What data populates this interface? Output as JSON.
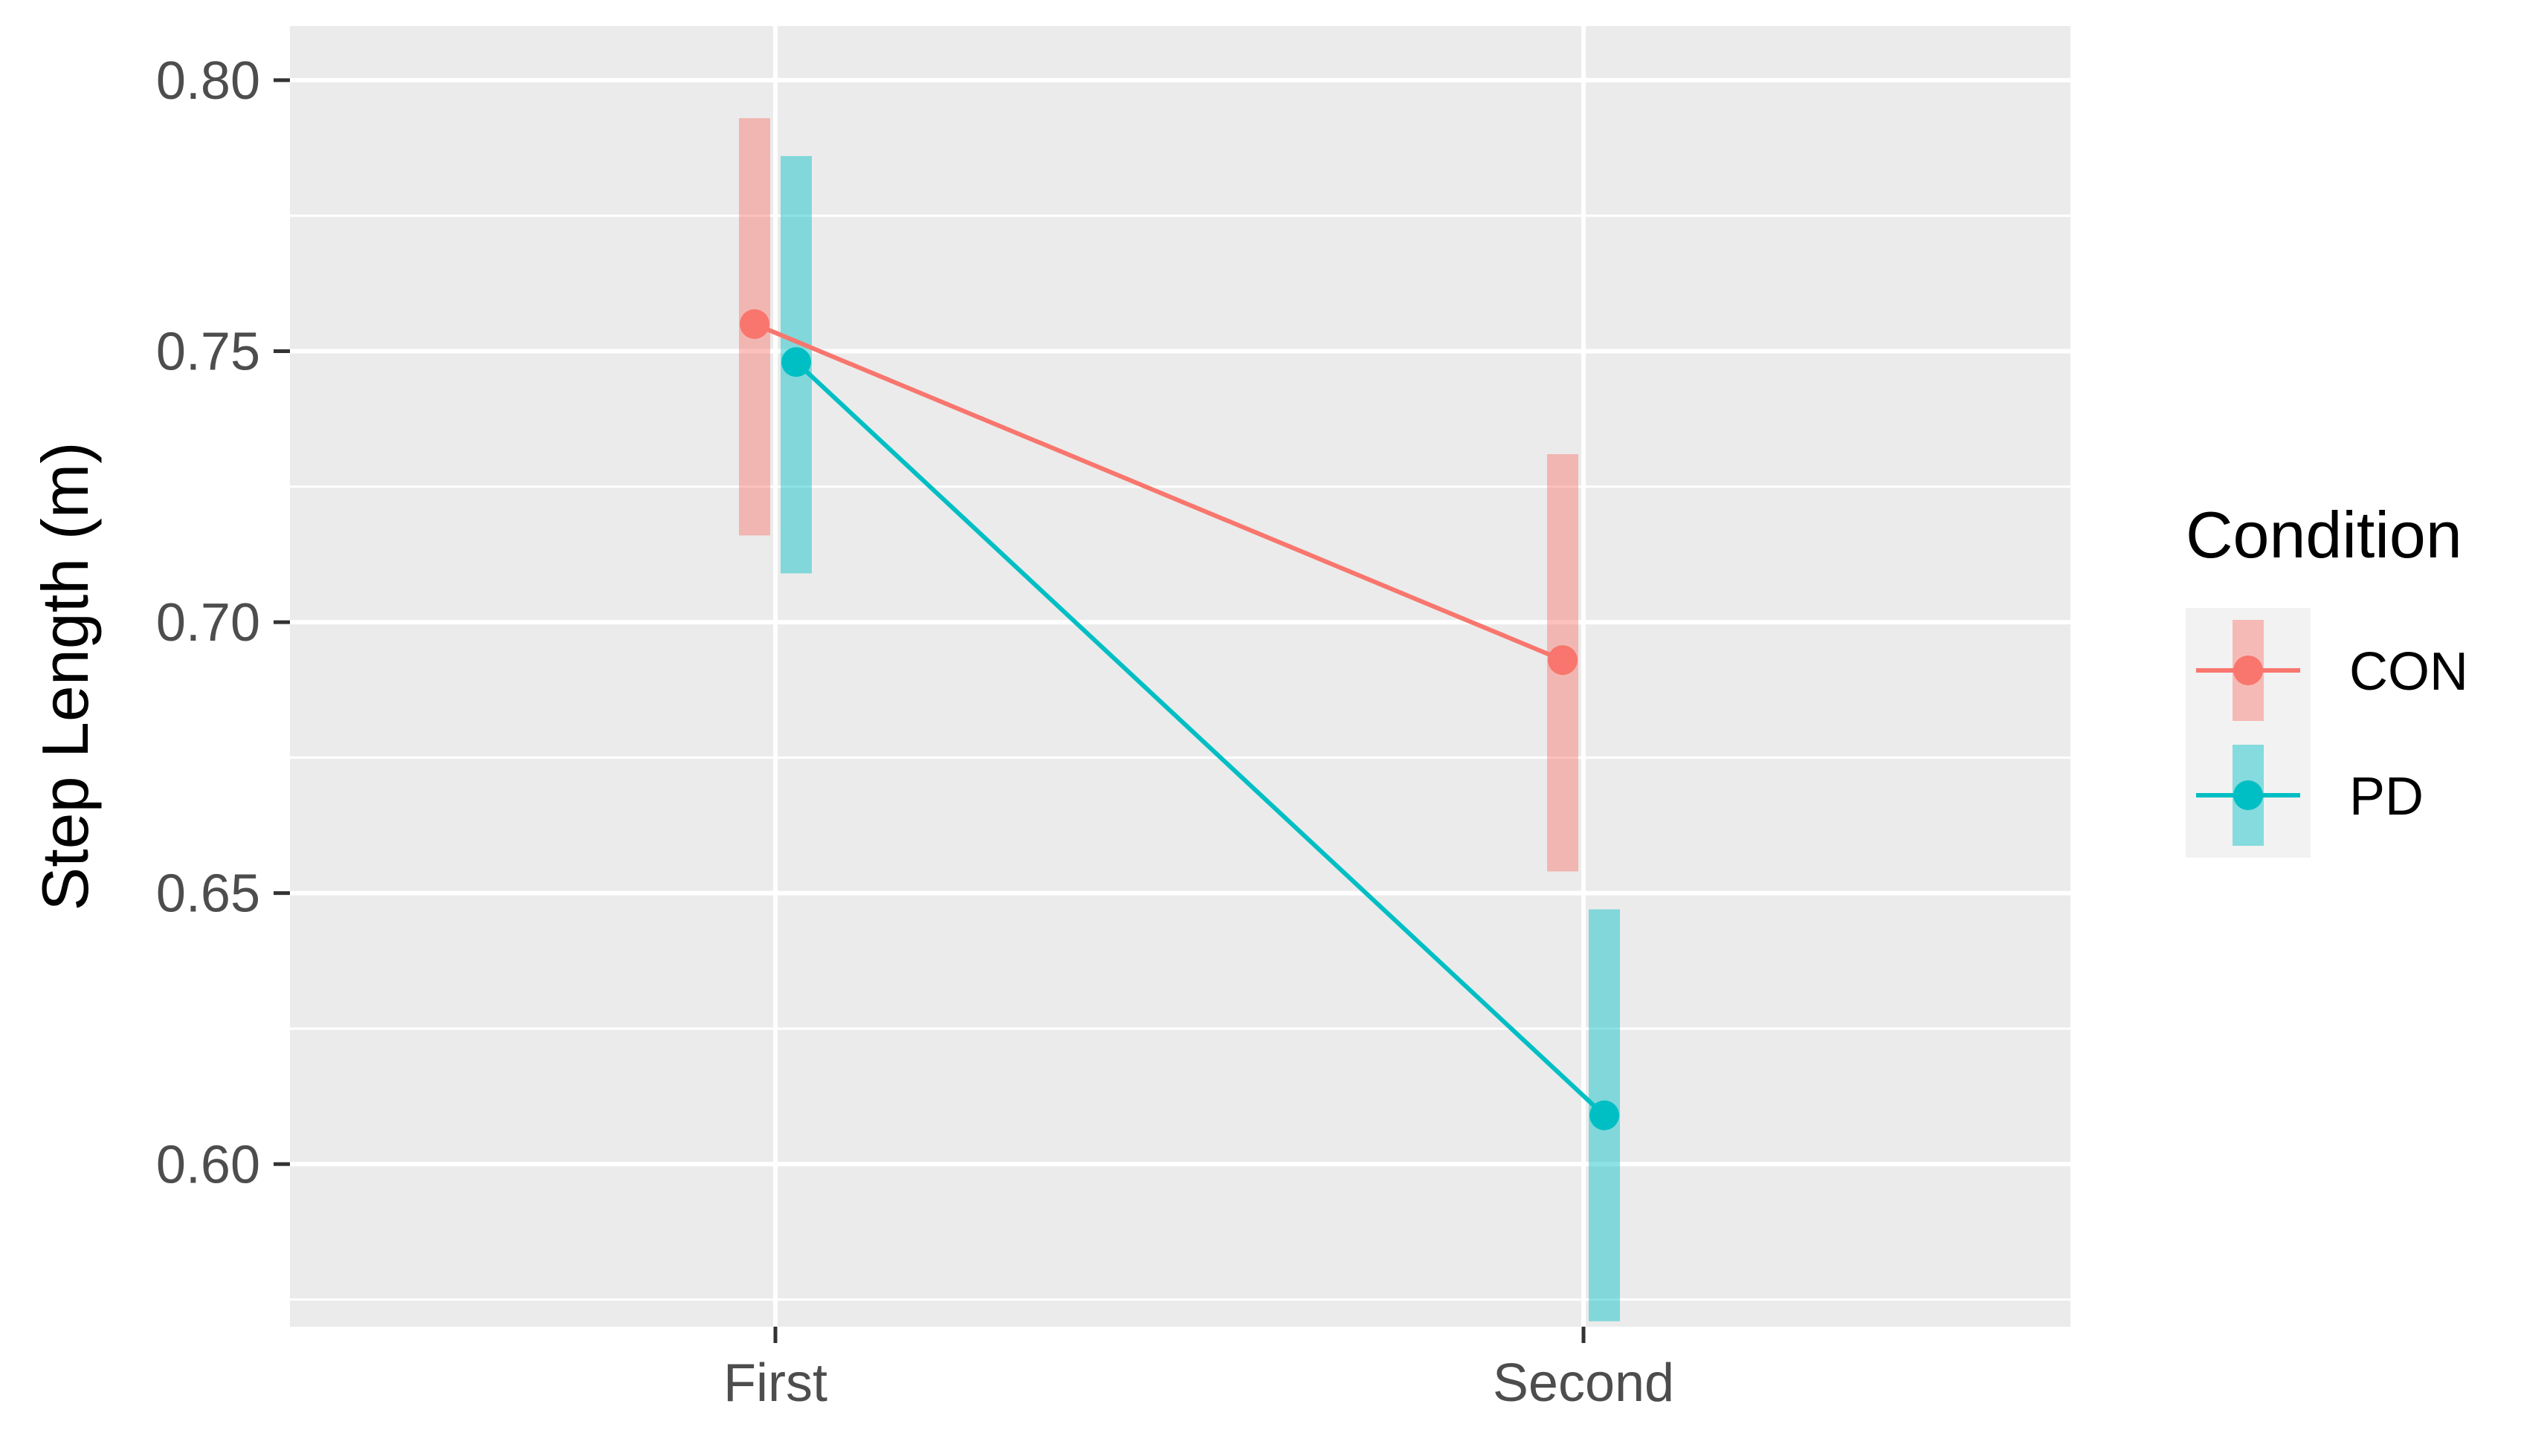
{
  "chart_data": {
    "type": "line",
    "title": "",
    "xlabel": "",
    "ylabel": "Step Length (m)",
    "categories": [
      "First",
      "Second"
    ],
    "ylim": [
      0.57,
      0.81
    ],
    "yticks": [
      "0.60",
      "0.65",
      "0.70",
      "0.75",
      "0.80"
    ],
    "grid": true,
    "legend": {
      "title": "Condition",
      "position": "right"
    },
    "series": [
      {
        "name": "CON",
        "color": "#F8766D",
        "values": [
          0.755,
          0.693
        ],
        "error_low": [
          0.716,
          0.654
        ],
        "error_high": [
          0.793,
          0.731
        ]
      },
      {
        "name": "PD",
        "color": "#00BFC4",
        "values": [
          0.748,
          0.609
        ],
        "error_low": [
          0.709,
          0.571
        ],
        "error_high": [
          0.786,
          0.647
        ]
      }
    ]
  }
}
